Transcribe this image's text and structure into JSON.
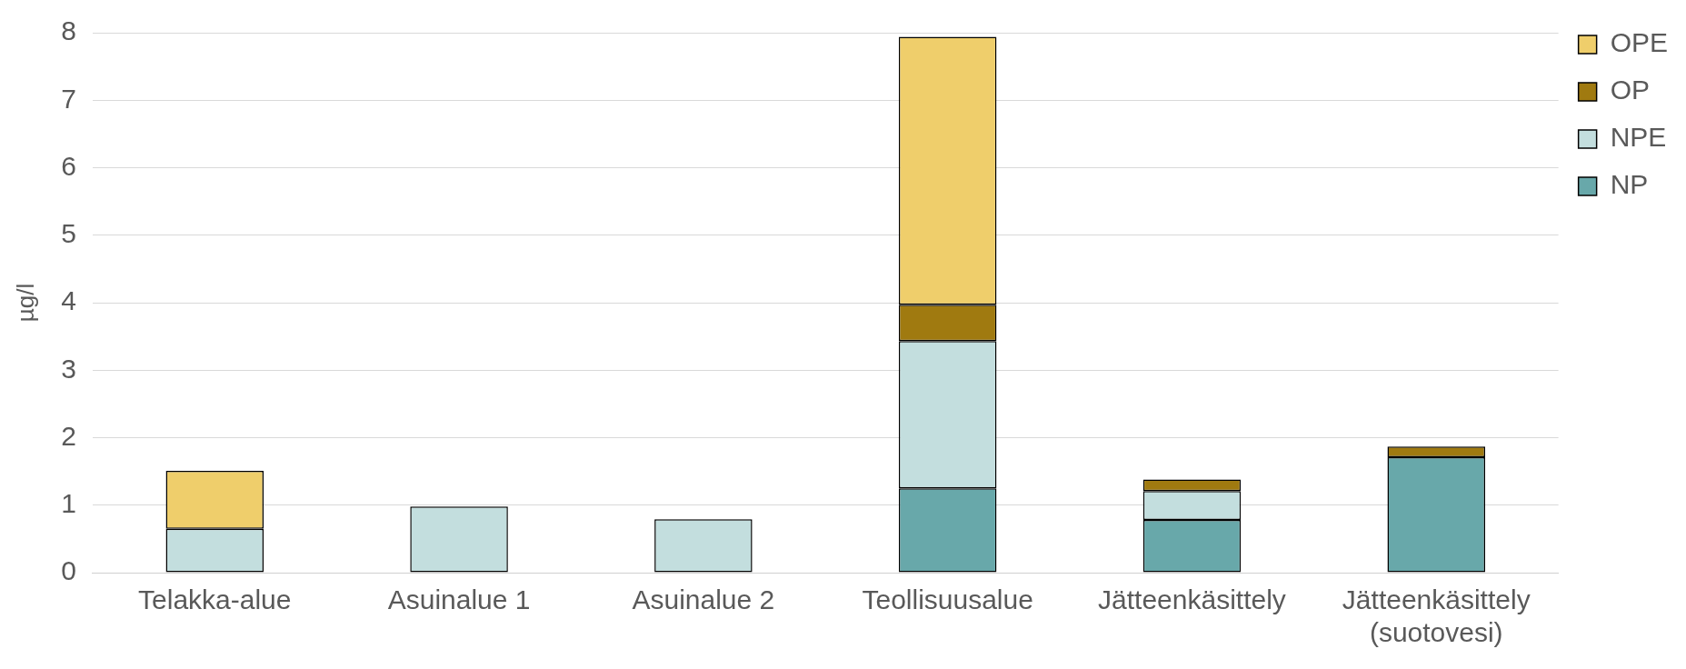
{
  "chart_data": {
    "type": "bar",
    "stacked": true,
    "ylabel": "µg/l",
    "categories": [
      "Telakka-alue",
      "Asuinalue 1",
      "Asuinalue 2",
      "Teollisuusalue",
      "Jätteenkäsittely",
      "Jätteenkäsittely\n(suotovesi)"
    ],
    "series": [
      {
        "name": "NP",
        "color": "#68a8aa",
        "values": [
          0,
          0,
          0,
          1.25,
          0.78,
          1.71
        ]
      },
      {
        "name": "NPE",
        "color": "#c3dede",
        "values": [
          0.65,
          0.98,
          0.79,
          2.18,
          0.43,
          0
        ]
      },
      {
        "name": "OP",
        "color": "#a07a10",
        "values": [
          0,
          0,
          0,
          0.54,
          0.17,
          0.16
        ]
      },
      {
        "name": "OPE",
        "color": "#efce6b",
        "values": [
          0.86,
          0,
          0,
          3.97,
          0,
          0
        ]
      }
    ],
    "ylim": [
      0,
      8
    ],
    "yticks": [
      0,
      1,
      2,
      3,
      4,
      5,
      6,
      7,
      8
    ],
    "grid": "y",
    "legend": "top right"
  }
}
